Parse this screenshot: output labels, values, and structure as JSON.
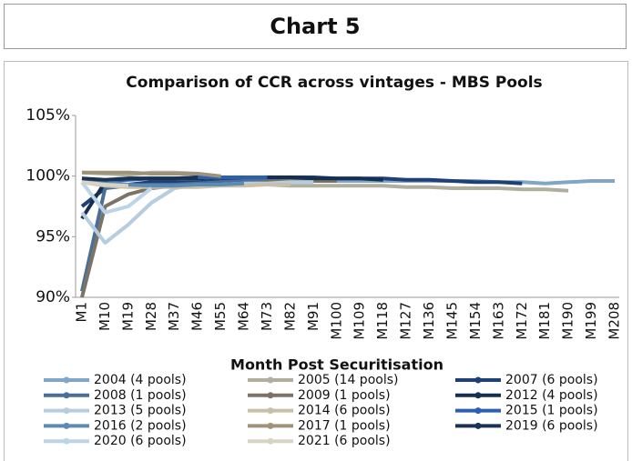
{
  "header": {
    "title": "Chart 5"
  },
  "chart_data": {
    "type": "line",
    "title": "Comparison of CCR across vintages - MBS Pools",
    "x_label": "Month Post Securitisation",
    "categories": [
      "M1",
      "M10",
      "M19",
      "M28",
      "M37",
      "M46",
      "M55",
      "M64",
      "M73",
      "M82",
      "M91",
      "M100",
      "M109",
      "M118",
      "M127",
      "M136",
      "M145",
      "M154",
      "M163",
      "M172",
      "M181",
      "M190",
      "M199",
      "M208"
    ],
    "ylim": [
      90,
      105
    ],
    "yticks": [
      {
        "value": 90,
        "label": "90%"
      },
      {
        "value": 95,
        "label": "95%"
      },
      {
        "value": 100,
        "label": "100%"
      },
      {
        "value": 105,
        "label": "105%"
      }
    ],
    "grid": false,
    "legend": "bottom",
    "series": [
      {
        "name": "2004 (4 pools)",
        "color": "#7fa5c8",
        "values": [
          99.5,
          99.3,
          99.2,
          99.2,
          99.2,
          99.3,
          99.3,
          99.4,
          99.5,
          99.6,
          99.6,
          99.6,
          99.6,
          99.6,
          99.6,
          99.6,
          99.6,
          99.6,
          99.5,
          99.5,
          99.4,
          99.5,
          99.6,
          99.6
        ]
      },
      {
        "name": "2005 (14 pools)",
        "color": "#b0ae9c",
        "values": [
          100.3,
          100.2,
          100.1,
          100.3,
          100.3,
          100.2,
          99.5,
          99.4,
          99.3,
          99.2,
          99.2,
          99.2,
          99.2,
          99.2,
          99.1,
          99.1,
          99.0,
          99.0,
          99.0,
          98.9,
          98.9,
          98.8,
          null,
          null
        ]
      },
      {
        "name": "2007 (6 pools)",
        "color": "#1f3f77",
        "values": [
          97.5,
          99.0,
          99.3,
          99.5,
          99.5,
          99.5,
          99.6,
          99.8,
          99.9,
          99.9,
          99.9,
          99.8,
          99.8,
          99.8,
          99.7,
          99.7,
          99.6,
          99.5,
          99.5,
          99.4,
          null,
          null,
          null,
          null
        ]
      },
      {
        "name": "2008 (1 pools)",
        "color": "#4a6f97",
        "values": [
          90.5,
          99.0,
          99.2,
          99.3,
          99.3,
          99.4,
          99.5,
          99.6,
          99.7,
          99.7,
          99.7,
          99.6,
          null,
          null,
          null,
          null,
          null,
          null,
          null,
          null,
          null,
          null,
          null,
          null
        ]
      },
      {
        "name": "2009 (1 pools)",
        "color": "#7b7466",
        "values": [
          90.0,
          97.5,
          98.5,
          99.0,
          99.2,
          99.3,
          99.3,
          99.4,
          99.5,
          99.6,
          99.6,
          99.6,
          null,
          null,
          null,
          null,
          null,
          null,
          null,
          null,
          null,
          null,
          null,
          null
        ]
      },
      {
        "name": "2012 (4 pools)",
        "color": "#152f52",
        "values": [
          96.5,
          99.5,
          99.8,
          99.8,
          99.8,
          99.8,
          99.9,
          99.9,
          99.9,
          99.9,
          99.8,
          99.8,
          99.8,
          99.7,
          null,
          null,
          null,
          null,
          null,
          null,
          null,
          null,
          null,
          null
        ]
      },
      {
        "name": "2013 (5 pools)",
        "color": "#b6cde0",
        "values": [
          97.0,
          94.5,
          96.0,
          97.8,
          99.0,
          99.3,
          99.3,
          99.4,
          99.4,
          99.5,
          99.5,
          null,
          null,
          null,
          null,
          null,
          null,
          null,
          null,
          null,
          null,
          null,
          null,
          null
        ]
      },
      {
        "name": "2014 (6 pools)",
        "color": "#c8bfa8",
        "values": [
          99.5,
          99.2,
          99.1,
          99.1,
          99.1,
          99.1,
          99.2,
          99.2,
          99.3,
          99.3,
          null,
          null,
          null,
          null,
          null,
          null,
          null,
          null,
          null,
          null,
          null,
          null,
          null,
          null
        ]
      },
      {
        "name": "2015 (1 pools)",
        "color": "#2d5fb0",
        "values": [
          99.8,
          99.6,
          99.7,
          99.8,
          99.8,
          99.9,
          99.9,
          99.9,
          99.9,
          null,
          null,
          null,
          null,
          null,
          null,
          null,
          null,
          null,
          null,
          null,
          null,
          null,
          null,
          null
        ]
      },
      {
        "name": "2016 (2 pools)",
        "color": "#5b8ab5",
        "values": [
          99.8,
          99.5,
          99.3,
          99.2,
          99.2,
          99.3,
          99.3,
          99.4,
          null,
          null,
          null,
          null,
          null,
          null,
          null,
          null,
          null,
          null,
          null,
          null,
          null,
          null,
          null,
          null
        ]
      },
      {
        "name": "2017 (1 pools)",
        "color": "#9e937a",
        "values": [
          100.3,
          100.3,
          100.3,
          100.2,
          100.2,
          100.2,
          100.0,
          null,
          null,
          null,
          null,
          null,
          null,
          null,
          null,
          null,
          null,
          null,
          null,
          null,
          null,
          null,
          null,
          null
        ]
      },
      {
        "name": "2019 (6 pools)",
        "color": "#1b3352",
        "values": [
          99.8,
          99.7,
          99.8,
          99.8,
          99.8,
          99.9,
          null,
          null,
          null,
          null,
          null,
          null,
          null,
          null,
          null,
          null,
          null,
          null,
          null,
          null,
          null,
          null,
          null,
          null
        ]
      },
      {
        "name": "2020 (6 pools)",
        "color": "#bcd4e8",
        "values": [
          99.5,
          97.0,
          97.5,
          99.0,
          null,
          null,
          null,
          null,
          null,
          null,
          null,
          null,
          null,
          null,
          null,
          null,
          null,
          null,
          null,
          null,
          null,
          null,
          null,
          null
        ]
      },
      {
        "name": "2021 (6 pools)",
        "color": "#d8d3c4",
        "values": [
          99.5,
          99.3,
          99.2,
          null,
          null,
          null,
          null,
          null,
          null,
          null,
          null,
          null,
          null,
          null,
          null,
          null,
          null,
          null,
          null,
          null,
          null,
          null,
          null,
          null
        ]
      }
    ]
  }
}
